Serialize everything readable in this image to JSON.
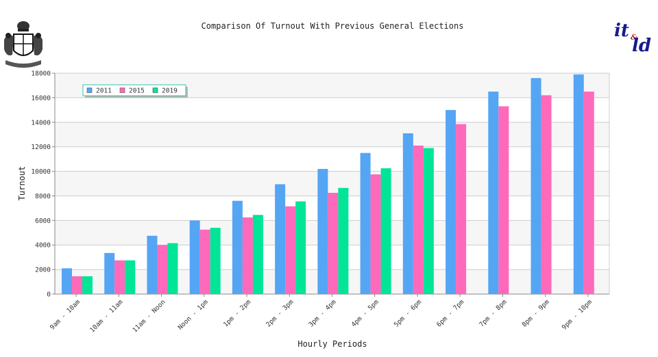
{
  "chart_data": {
    "type": "bar",
    "title": "Comparison Of Turnout With Previous General Elections",
    "xlabel": "Hourly Periods",
    "ylabel": "Turnout",
    "ylim": [
      0,
      18000
    ],
    "yticks": [
      0,
      2000,
      4000,
      6000,
      8000,
      10000,
      12000,
      14000,
      16000,
      18000
    ],
    "grid": true,
    "legend_position": "top-left",
    "categories": [
      "9am - 10am",
      "10am - 11am",
      "11am - Noon",
      "Noon - 1pm",
      "1pm - 2pm",
      "2pm - 3pm",
      "3pm - 4pm",
      "4pm - 5pm",
      "5pm - 6pm",
      "6pm - 7pm",
      "7pm - 8pm",
      "8pm - 9pm",
      "9pm - 10pm"
    ],
    "series": [
      {
        "name": "2011",
        "color": "#55a5f5",
        "values": [
          2100,
          3350,
          4750,
          6000,
          7600,
          8950,
          10200,
          11500,
          13100,
          15000,
          16500,
          17600,
          17900
        ]
      },
      {
        "name": "2015",
        "color": "#ff69bb",
        "values": [
          1450,
          2750,
          4000,
          5250,
          6250,
          7150,
          8250,
          9750,
          12100,
          13850,
          15300,
          16200,
          16500
        ]
      },
      {
        "name": "2019",
        "color": "#00e596",
        "values": [
          1450,
          2750,
          4150,
          5400,
          6450,
          7550,
          8650,
          10250,
          11900,
          null,
          null,
          null,
          null
        ]
      }
    ]
  },
  "logos": {
    "left": "coat-of-arms",
    "right_text_top": "it",
    "right_text_amp": "&",
    "right_text_bottom": "ld"
  }
}
